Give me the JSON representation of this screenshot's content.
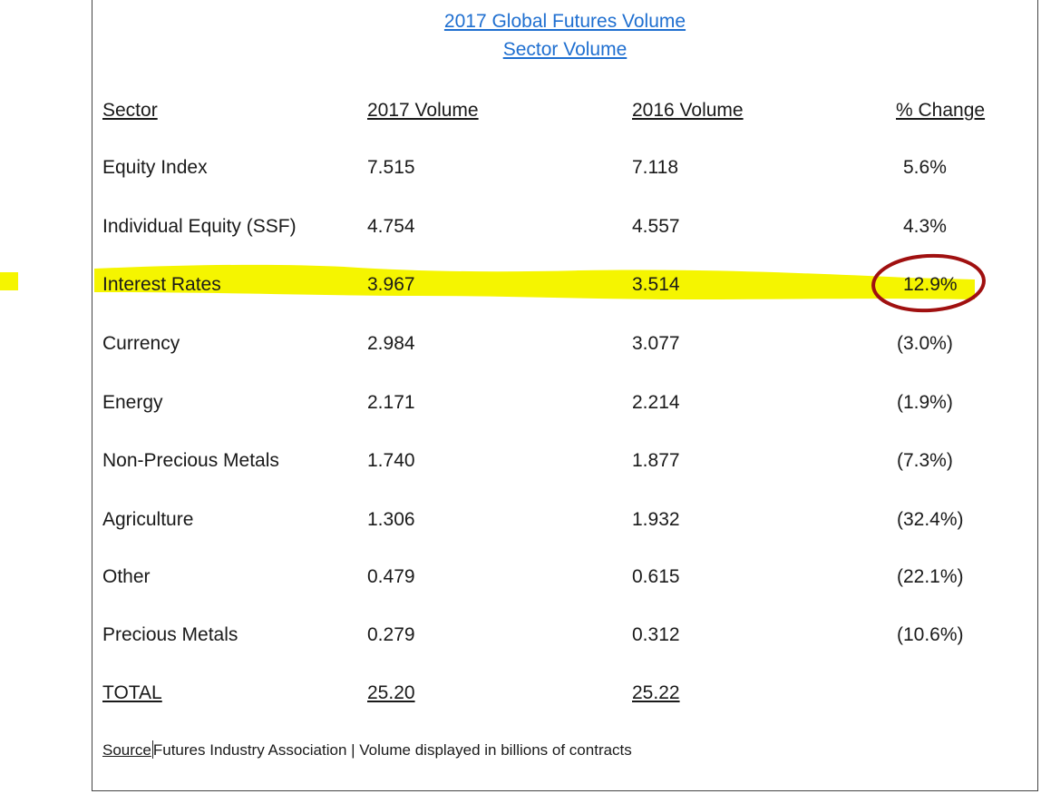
{
  "title_line1": "2017 Global Futures Volume",
  "title_line2": "Sector Volume",
  "headers": {
    "sector": "Sector",
    "vol2017": "2017 Volume",
    "vol2016": "2016 Volume",
    "change": "% Change"
  },
  "rows": [
    {
      "sector": "Equity Index",
      "vol2017": "7.515",
      "vol2016": "7.118",
      "change": "5.6%"
    },
    {
      "sector": "Individual Equity (SSF)",
      "vol2017": "4.754",
      "vol2016": "4.557",
      "change": "4.3%"
    },
    {
      "sector": "Interest Rates",
      "vol2017": "3.967",
      "vol2016": "3.514",
      "change": "12.9%"
    },
    {
      "sector": "Currency",
      "vol2017": "2.984",
      "vol2016": "3.077",
      "change": "(3.0%)"
    },
    {
      "sector": "Energy",
      "vol2017": "2.171",
      "vol2016": "2.214",
      "change": "(1.9%)"
    },
    {
      "sector": "Non-Precious Metals",
      "vol2017": "1.740",
      "vol2016": "1.877",
      "change": "(7.3%)"
    },
    {
      "sector": "Agriculture",
      "vol2017": "1.306",
      "vol2016": "1.932",
      "change": "(32.4%)"
    },
    {
      "sector": "Other",
      "vol2017": "0.479",
      "vol2016": "0.615",
      "change": "(22.1%)"
    },
    {
      "sector": "Precious Metals",
      "vol2017": "0.279",
      "vol2016": "0.312",
      "change": "(10.6%)"
    }
  ],
  "total": {
    "label": "TOTAL",
    "vol2017": "25.20",
    "vol2016": "25.22"
  },
  "source": {
    "label": "Source",
    "text": "Futures Industry Association | Volume displayed in billions of contracts"
  },
  "colors": {
    "title": "#1f6fd0",
    "highlight": "#f5f500",
    "circle": "#a01010"
  }
}
